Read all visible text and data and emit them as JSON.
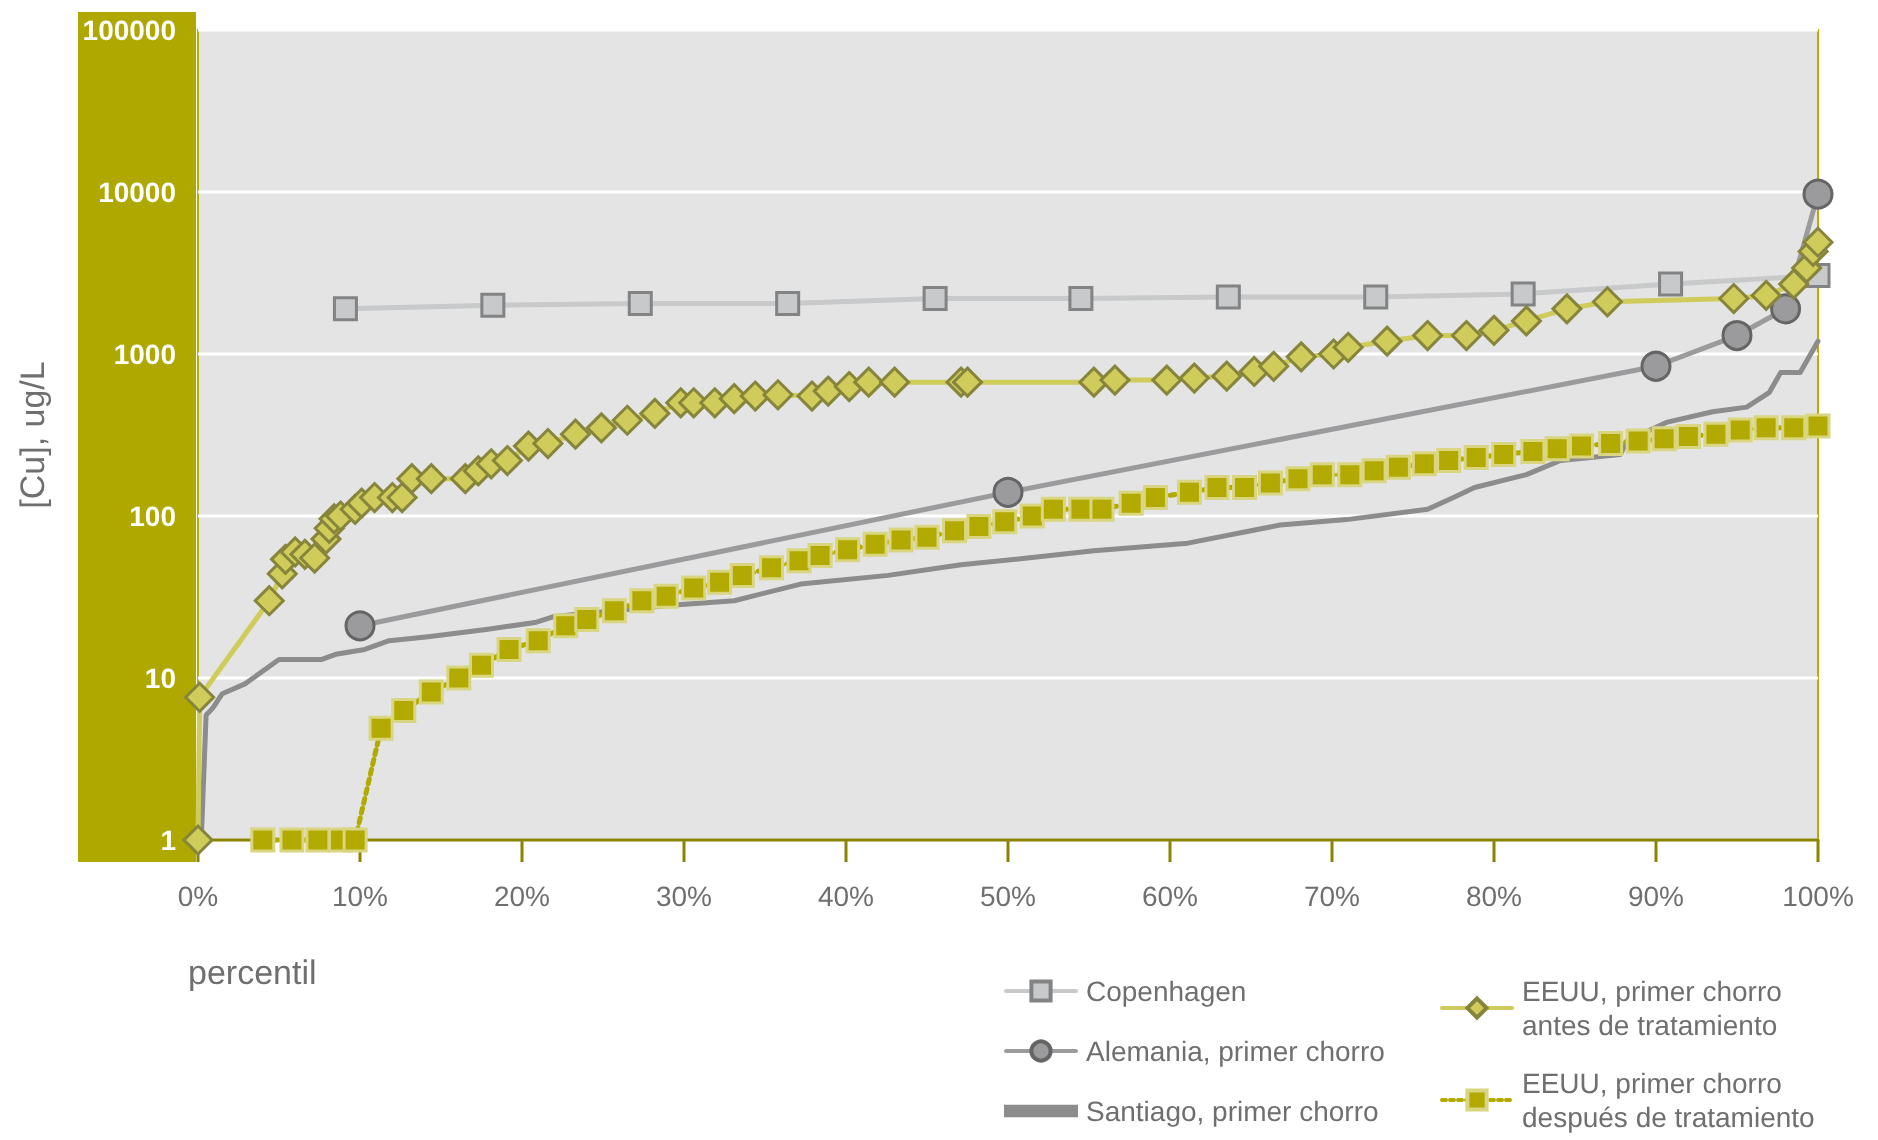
{
  "chart_data": {
    "type": "line",
    "xlabel": "percentil",
    "ylabel": "[Cu], ug/L",
    "xlim": [
      0,
      100
    ],
    "xticks": [
      {
        "value": 0,
        "label": "0%"
      },
      {
        "value": 10,
        "label": "10%"
      },
      {
        "value": 20,
        "label": "20%"
      },
      {
        "value": 30,
        "label": "30%"
      },
      {
        "value": 40,
        "label": "40%"
      },
      {
        "value": 50,
        "label": "50%"
      },
      {
        "value": 60,
        "label": "60%"
      },
      {
        "value": 70,
        "label": "70%"
      },
      {
        "value": 80,
        "label": "80%"
      },
      {
        "value": 90,
        "label": "90%"
      },
      {
        "value": 100,
        "label": "100%"
      }
    ],
    "ylim": [
      1,
      100000
    ],
    "yticks": [
      1,
      10,
      100,
      1000,
      10000,
      100000
    ],
    "log": "y",
    "grid": "y",
    "legend": "bottom right",
    "series": [
      {
        "name": "Copenhagen",
        "color": "#c8c9cb",
        "marker": "square",
        "line_style": "solid",
        "x": [
          9.1,
          18.2,
          27.3,
          36.4,
          45.5,
          54.5,
          63.6,
          72.7,
          81.8,
          90.9,
          100
        ],
        "values": [
          1900,
          2000,
          2050,
          2050,
          2200,
          2200,
          2250,
          2250,
          2350,
          2700,
          3050
        ]
      },
      {
        "name": "Alemania, primer chorro",
        "color": "#9b9b9d",
        "marker": "circle",
        "line_style": "solid",
        "x": [
          10,
          50,
          90,
          95,
          98,
          100
        ],
        "values": [
          21,
          140,
          840,
          1300,
          1900,
          9700
        ]
      },
      {
        "name": "Santiago, primer chorro",
        "color": "#8c8c8c",
        "marker": "none",
        "line_style": "solid",
        "x": [
          0.2,
          0.5,
          0.9,
          1.5,
          2.9,
          5.0,
          7.6,
          8.5,
          10.3,
          11.8,
          14.2,
          17.9,
          20.8,
          22.0,
          29.0,
          33.1,
          37.2,
          42.6,
          47.1,
          51.2,
          55.3,
          61.1,
          66.8,
          70.9,
          75.9,
          77.5,
          78.8,
          82.0,
          84.1,
          87.8,
          88.2,
          90.7,
          93.5,
          95.6,
          97.0,
          97.7,
          98.9,
          100
        ],
        "values": [
          1,
          5.9,
          6.5,
          8,
          9.2,
          13,
          13,
          14,
          15,
          17,
          18,
          20,
          22,
          24,
          28,
          30,
          38,
          43,
          50,
          55,
          61,
          68,
          88,
          95,
          110,
          130,
          150,
          180,
          220,
          240,
          290,
          380,
          440,
          470,
          580,
          770,
          770,
          1200
        ]
      },
      {
        "name": "EEUU, primer chorro antes de tratamiento",
        "color": "#d0cc5c",
        "marker": "diamond",
        "line_style": "solid",
        "x": [
          0,
          0.1,
          4.4,
          5.2,
          5.4,
          6.0,
          6.6,
          7.2,
          7.9,
          8.1,
          8.4,
          8.8,
          9.7,
          10.1,
          10.9,
          12.0,
          12.6,
          13.2,
          14.4,
          16.5,
          17.3,
          18.1,
          19.1,
          20.4,
          21.6,
          23.3,
          24.9,
          26.5,
          28.2,
          29.8,
          30.6,
          31.9,
          33.1,
          34.4,
          35.8,
          37.9,
          38.9,
          40.2,
          41.4,
          43.0,
          47.1,
          47.5,
          55.3,
          56.6,
          59.8,
          61.5,
          63.5,
          65.2,
          66.4,
          68.1,
          70.1,
          71.0,
          73.4,
          75.9,
          78.3,
          80.0,
          82.0,
          84.5,
          87.0,
          94.8,
          96.8,
          98.5,
          99.3,
          99.7,
          100
        ],
        "values": [
          1,
          7.6,
          30,
          44,
          54,
          60,
          58,
          55,
          72,
          84,
          96,
          100,
          110,
          120,
          130,
          130,
          130,
          170,
          170,
          170,
          190,
          210,
          220,
          270,
          280,
          320,
          350,
          390,
          430,
          500,
          500,
          500,
          530,
          550,
          560,
          550,
          590,
          630,
          670,
          670,
          670,
          670,
          670,
          690,
          690,
          710,
          730,
          780,
          840,
          960,
          1000,
          1100,
          1200,
          1300,
          1300,
          1400,
          1600,
          1900,
          2100,
          2200,
          2300,
          2700,
          3400,
          4300,
          4900
        ]
      },
      {
        "name": "EEUU, primer chorro después de tratamiento",
        "color": "#b2aa00",
        "marker": "square",
        "line_style": "dotted",
        "x": [
          4.0,
          5.8,
          7.4,
          8.8,
          9.7,
          11.3,
          12.7,
          14.4,
          16.1,
          17.5,
          19.2,
          21.0,
          22.7,
          24.0,
          25.7,
          27.4,
          28.9,
          30.6,
          32.2,
          33.6,
          35.4,
          37.1,
          38.4,
          40.1,
          41.8,
          43.4,
          45.0,
          46.7,
          48.2,
          49.8,
          51.5,
          52.8,
          54.5,
          55.8,
          57.6,
          59.1,
          61.2,
          62.9,
          64.6,
          66.2,
          67.9,
          69.4,
          71.1,
          72.6,
          74.1,
          75.7,
          77.2,
          78.9,
          80.6,
          82.4,
          83.9,
          85.4,
          87.2,
          88.9,
          90.5,
          92.0,
          93.7,
          95.2,
          96.8,
          98.5,
          100
        ],
        "values": [
          1,
          1,
          1,
          1,
          1,
          4.9,
          6.3,
          8.2,
          10,
          12,
          15,
          17,
          21,
          23,
          26,
          30,
          32,
          36,
          39,
          43,
          48,
          53,
          57,
          62,
          67,
          71,
          74,
          81,
          86,
          92,
          100,
          110,
          110,
          110,
          120,
          130,
          140,
          150,
          150,
          160,
          170,
          180,
          180,
          190,
          200,
          210,
          220,
          230,
          240,
          250,
          260,
          270,
          280,
          290,
          300,
          310,
          320,
          340,
          350,
          350,
          360
        ]
      }
    ]
  }
}
